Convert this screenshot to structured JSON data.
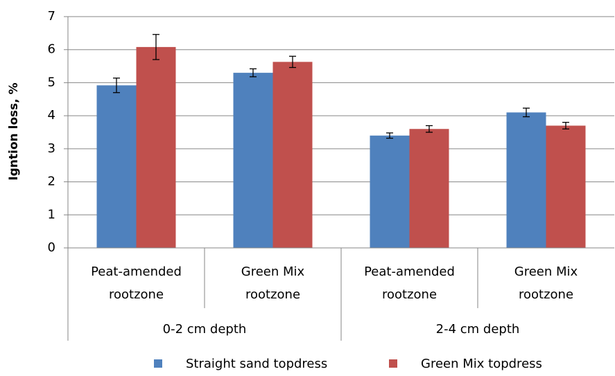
{
  "chart_data": {
    "type": "bar",
    "y_label": "Igntion loss, %",
    "categories": [
      [
        "Peat-amended",
        "rootzone"
      ],
      [
        "Green Mix",
        "rootzone"
      ],
      [
        "Peat-amended",
        "rootzone"
      ],
      [
        "Green Mix",
        "rootzone"
      ]
    ],
    "groups": [
      "0-2 cm depth",
      "2-4 cm depth"
    ],
    "series": [
      {
        "name": "Straight sand topdress",
        "color": "#4f81bd",
        "values": [
          4.92,
          5.3,
          3.4,
          4.1
        ],
        "errors": [
          0.22,
          0.12,
          0.08,
          0.13
        ]
      },
      {
        "name": "Green Mix topdress",
        "color": "#c0504d",
        "values": [
          6.08,
          5.63,
          3.6,
          3.7
        ],
        "errors": [
          0.38,
          0.17,
          0.1,
          0.1
        ]
      }
    ],
    "ylim": [
      0,
      7
    ],
    "yticks": [
      0,
      1,
      2,
      3,
      4,
      5,
      6,
      7
    ],
    "grid": true,
    "legend": "bottom"
  }
}
